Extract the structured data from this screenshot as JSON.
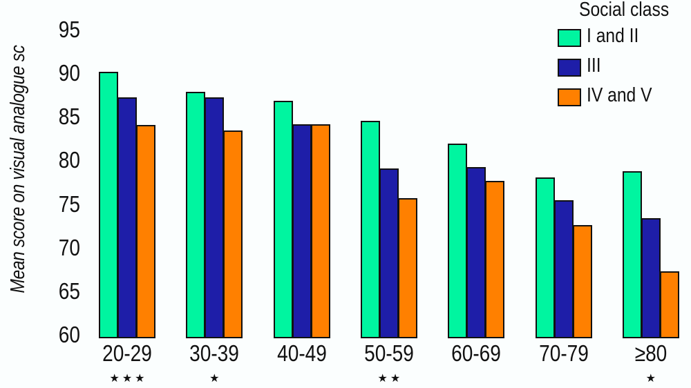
{
  "chart_data": {
    "type": "bar",
    "title": "",
    "xlabel": "",
    "ylabel": "Mean score on visual analogue sc",
    "ylim": [
      60,
      95
    ],
    "yticks": [
      60,
      65,
      70,
      75,
      80,
      85,
      90,
      95
    ],
    "grid": false,
    "legend_title": "Social class",
    "legend_position": "top-right",
    "categories": [
      "20-29",
      "30-39",
      "40-49",
      "50-59",
      "60-69",
      "70-79",
      "≥80"
    ],
    "significance": [
      "★★★",
      "★",
      "",
      "★★",
      "",
      "",
      "★"
    ],
    "series": [
      {
        "name": "I and II",
        "color": "#00f5a0",
        "values": [
          90.4,
          88.1,
          87.1,
          84.8,
          82.2,
          78.3,
          79.0
        ]
      },
      {
        "name": "III",
        "color": "#1e1ea8",
        "values": [
          87.5,
          87.5,
          84.4,
          79.3,
          79.5,
          75.7,
          73.6
        ]
      },
      {
        "name": "IV and V",
        "color": "#ff8000",
        "values": [
          84.3,
          83.7,
          84.4,
          75.9,
          77.9,
          72.8,
          67.5
        ]
      }
    ]
  },
  "legend": {
    "title": "Social class",
    "items": [
      "I and II",
      "III",
      "IV and V"
    ]
  }
}
